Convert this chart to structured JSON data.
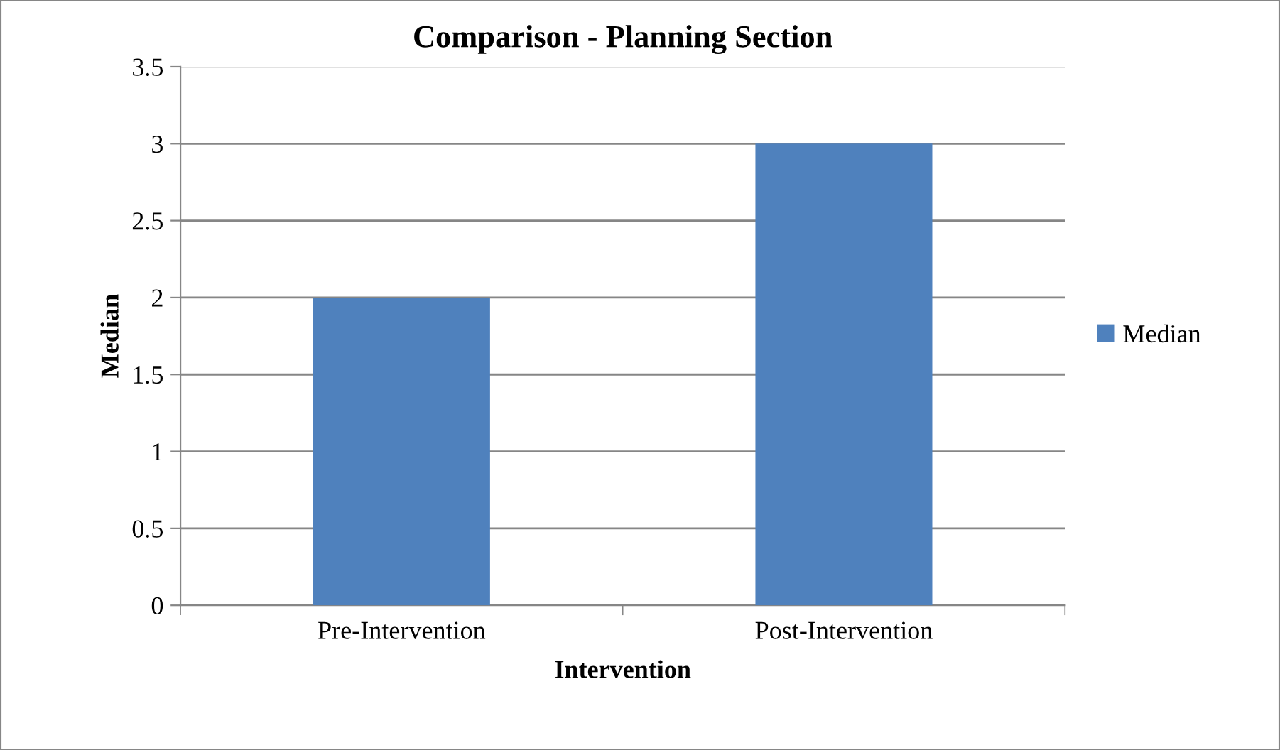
{
  "chart_data": {
    "type": "bar",
    "title": "Comparison - Planning Section",
    "xlabel": "Intervention",
    "ylabel": "Median",
    "categories": [
      "Pre-Intervention",
      "Post-Intervention"
    ],
    "series": [
      {
        "name": "Median",
        "color": "#4f81bd",
        "values": [
          2,
          3
        ]
      }
    ],
    "ylim": [
      0,
      3.5
    ],
    "yticks": [
      0,
      0.5,
      1,
      1.5,
      2,
      2.5,
      3,
      3.5
    ],
    "grid": "y",
    "legend": "right"
  }
}
